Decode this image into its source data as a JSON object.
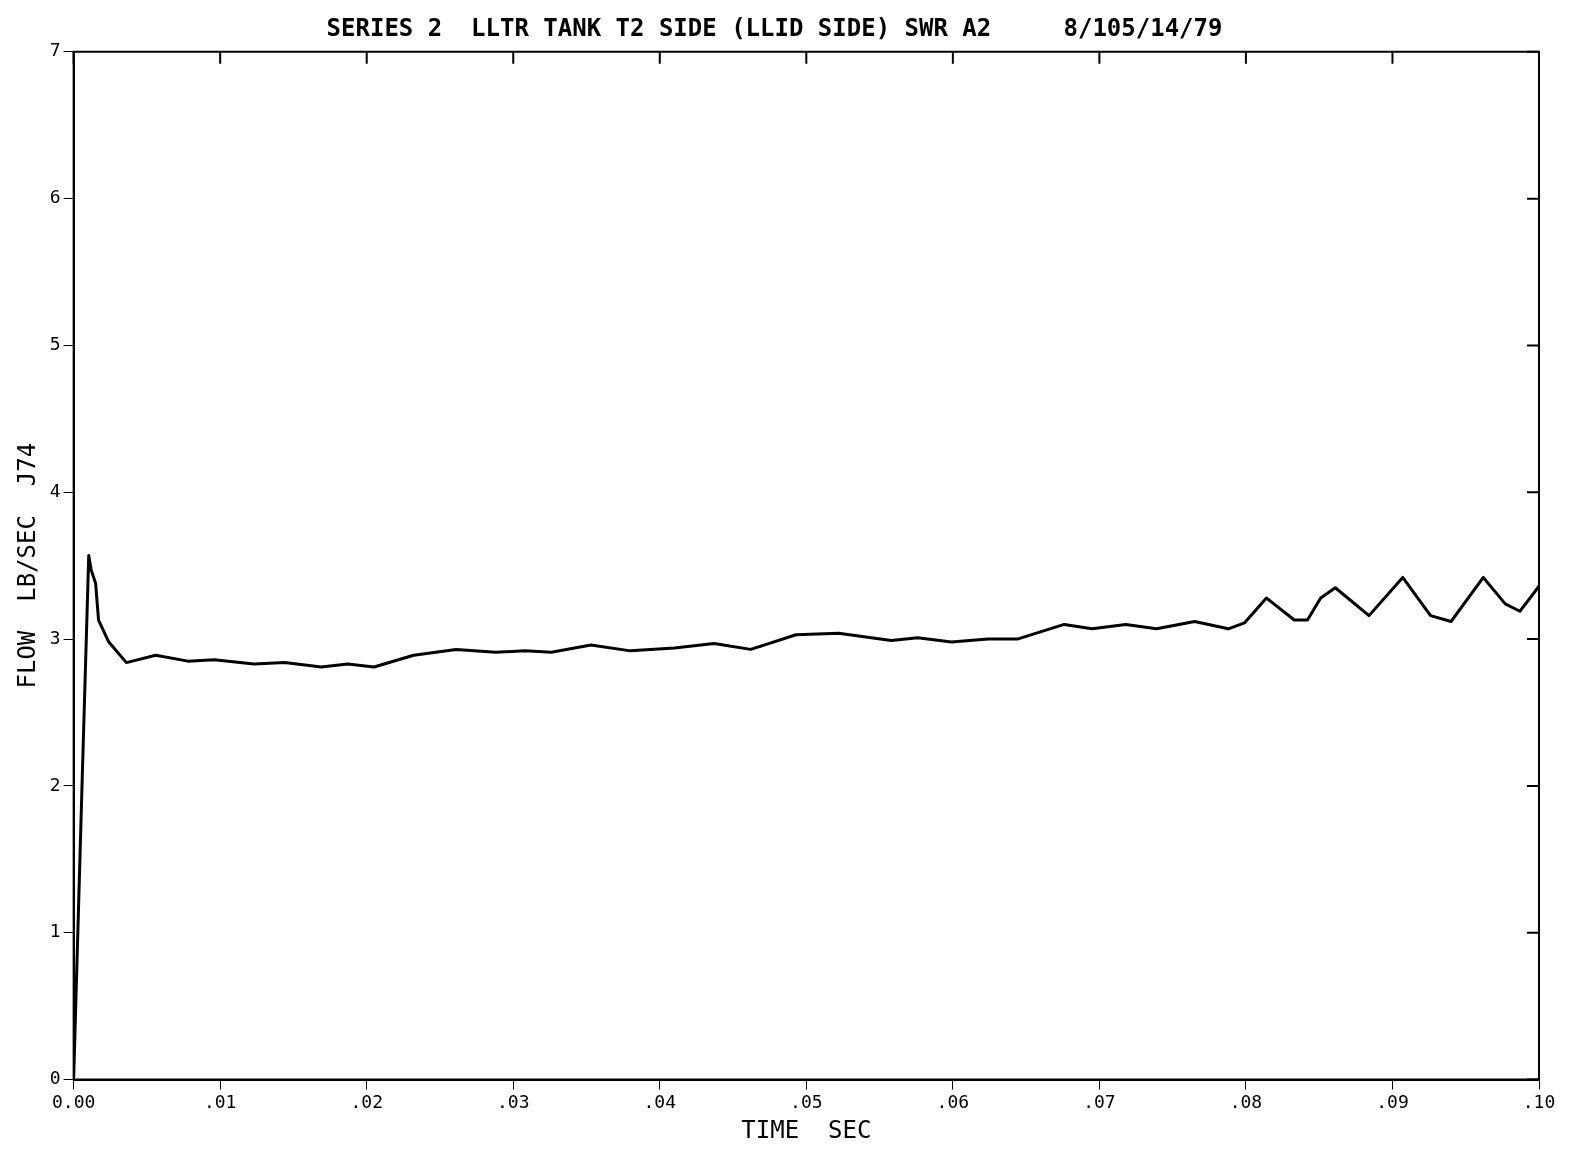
{
  "chart_data": {
    "type": "line",
    "title": "SERIES 2  LLTR TANK T2 SIDE (LLID SIDE) SWR A2     8/105/14/79",
    "xlabel": "TIME  SEC",
    "ylabel": "FLOW  LB/SEC  J74",
    "x": [
      0,
      0.0006,
      0.00103,
      0.0012,
      0.0015,
      0.0017,
      0.0024,
      0.0036,
      0.0056,
      0.0078,
      0.0096,
      0.0123,
      0.0144,
      0.0169,
      0.0187,
      0.0205,
      0.0232,
      0.0261,
      0.0288,
      0.0308,
      0.0326,
      0.0353,
      0.038,
      0.041,
      0.0437,
      0.0462,
      0.0493,
      0.0522,
      0.0558,
      0.0576,
      0.0599,
      0.0624,
      0.0644,
      0.0676,
      0.0695,
      0.0718,
      0.0739,
      0.0765,
      0.0788,
      0.0799,
      0.0814,
      0.0833,
      0.0842,
      0.0851,
      0.0861,
      0.0884,
      0.0907,
      0.0926,
      0.094,
      0.0962,
      0.0977,
      0.0987,
      0.1
    ],
    "series": [
      {
        "color": "#000000",
        "values": [
          0,
          2.1,
          3.57,
          3.47,
          3.38,
          3.13,
          2.98,
          2.84,
          2.89,
          2.85,
          2.86,
          2.83,
          2.84,
          2.81,
          2.83,
          2.81,
          2.89,
          2.93,
          2.91,
          2.92,
          2.91,
          2.96,
          2.92,
          2.94,
          2.97,
          2.93,
          3.03,
          3.04,
          2.99,
          3.01,
          2.98,
          3.0,
          3.0,
          3.1,
          3.07,
          3.1,
          3.07,
          3.12,
          3.07,
          3.11,
          3.28,
          3.13,
          3.13,
          3.28,
          3.35,
          3.16,
          3.42,
          3.16,
          3.12,
          3.42,
          3.24,
          3.19,
          3.36
        ]
      }
    ],
    "xlim": [
      0,
      0.1
    ],
    "xticks": [
      {
        "value": 0,
        "label": "0.00"
      },
      {
        "value": 0.01,
        "label": ".01"
      },
      {
        "value": 0.02,
        "label": ".02"
      },
      {
        "value": 0.03,
        "label": ".03"
      },
      {
        "value": 0.04,
        "label": ".04"
      },
      {
        "value": 0.05,
        "label": ".05"
      },
      {
        "value": 0.06,
        "label": ".06"
      },
      {
        "value": 0.07,
        "label": ".07"
      },
      {
        "value": 0.08,
        "label": ".08"
      },
      {
        "value": 0.09,
        "label": ".09"
      },
      {
        "value": 0.1,
        "label": ".10"
      }
    ],
    "ylim": [
      0,
      7
    ],
    "yticks": [
      0,
      1,
      2,
      3,
      4,
      5,
      6,
      7
    ],
    "grid": false,
    "legend": false,
    "marker": "none",
    "line_style": "solid"
  }
}
